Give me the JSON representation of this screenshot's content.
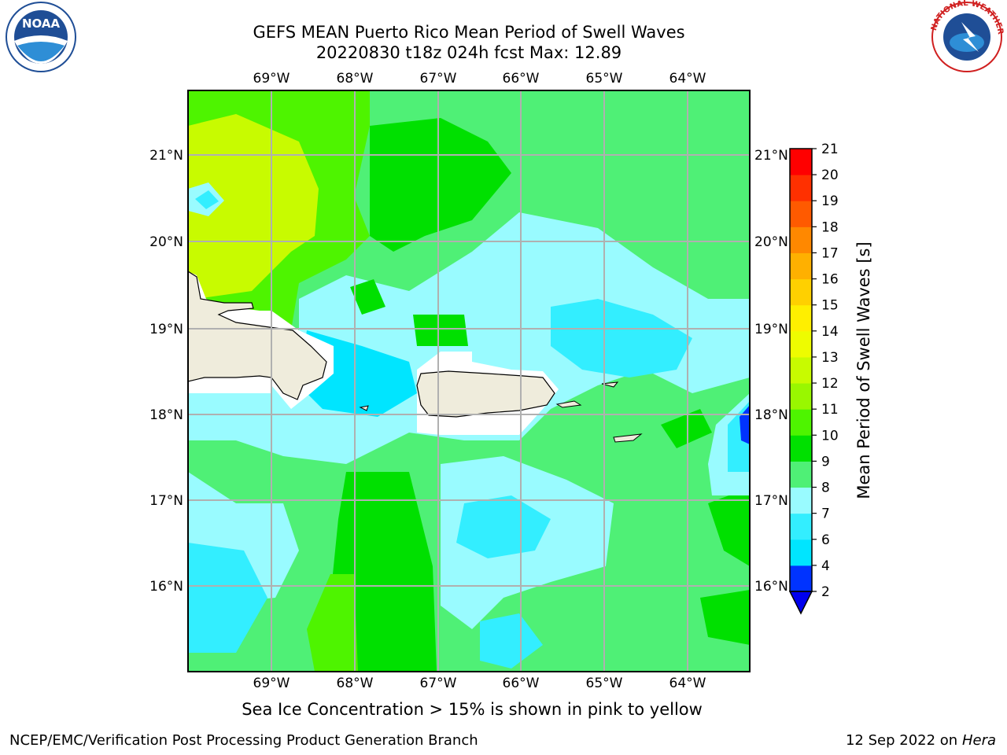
{
  "header": {
    "title_line1": "GEFS MEAN Puerto Rico Mean Period of Swell Waves",
    "title_line2": "20220830 t18z 024h fcst   Max: 12.89"
  },
  "logos": {
    "left": "NOAA",
    "right": "NATIONAL WEATHER SERVICE"
  },
  "map": {
    "lon_labels": [
      "69°W",
      "68°W",
      "67°W",
      "66°W",
      "65°W",
      "64°W"
    ],
    "lat_labels": [
      "21°N",
      "20°N",
      "19°N",
      "18°N",
      "17°N",
      "16°N"
    ],
    "background_color": "#4ff076",
    "land_color": "#efecdc"
  },
  "colorbar": {
    "title": "Mean Period of Swell Waves [s]",
    "levels": [
      "2",
      "4",
      "6",
      "7",
      "8",
      "9",
      "10",
      "11",
      "12",
      "13",
      "14",
      "15",
      "16",
      "17",
      "18",
      "19",
      "20",
      "21"
    ],
    "colors": [
      "#0033ff",
      "#00e5ff",
      "#33eeff",
      "#99fbff",
      "#4ff076",
      "#00e000",
      "#4ef400",
      "#99f700",
      "#c8fb00",
      "#eefc00",
      "#ffef00",
      "#ffd000",
      "#ffb000",
      "#ff8800",
      "#ff5a00",
      "#ff3000",
      "#ff0000"
    ],
    "extend_color": "#0000ee"
  },
  "notes": {
    "sea_ice": "Sea Ice Concentration > 15% is shown in pink to yellow"
  },
  "footer": {
    "left": "NCEP/EMC/Verification Post Processing Product Generation Branch",
    "date": "12 Sep 2022 on",
    "machine": "Hera"
  }
}
